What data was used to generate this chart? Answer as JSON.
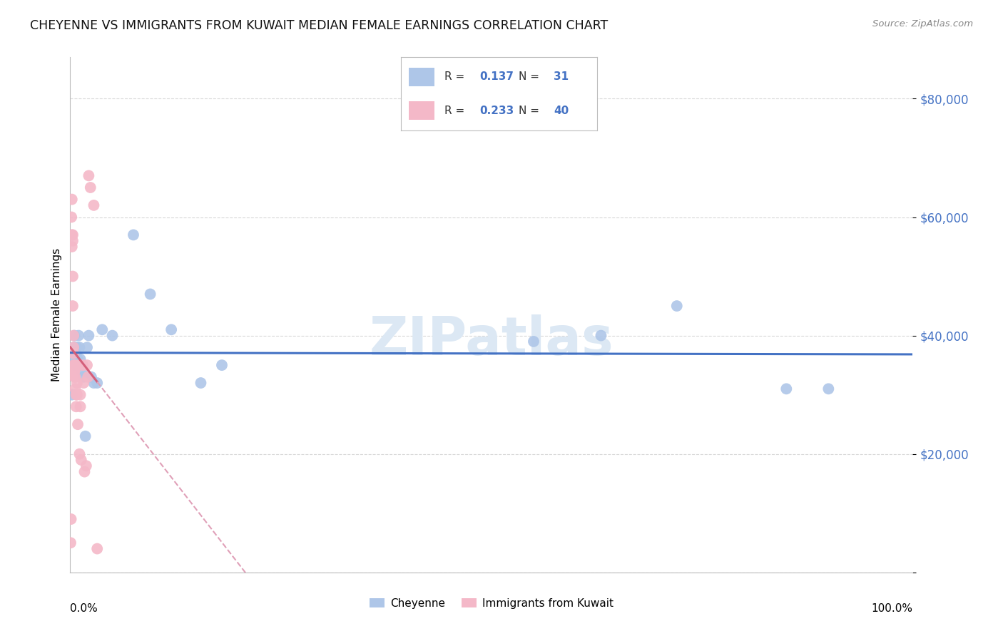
{
  "title": "CHEYENNE VS IMMIGRANTS FROM KUWAIT MEDIAN FEMALE EARNINGS CORRELATION CHART",
  "source": "Source: ZipAtlas.com",
  "ylabel": "Median Female Earnings",
  "legend_label_cheyenne": "Cheyenne",
  "legend_label_kuwait": "Immigrants from Kuwait",
  "cheyenne_R": "0.137",
  "cheyenne_N": "31",
  "kuwait_R": "0.233",
  "kuwait_N": "40",
  "yticks": [
    0,
    20000,
    40000,
    60000,
    80000
  ],
  "ytick_labels": [
    "",
    "$20,000",
    "$40,000",
    "$60,000",
    "$80,000"
  ],
  "cheyenne_color": "#aec6e8",
  "cheyenne_line_color": "#4472c4",
  "kuwait_color": "#f4b8c8",
  "kuwait_line_color": "#d45f7a",
  "kuwait_dash_color": "#e0a0b8",
  "label_color": "#4472c4",
  "background_color": "#ffffff",
  "grid_color": "#d8d8d8",
  "watermark_color": "#dce8f4",
  "cheyenne_x": [
    0.002,
    0.003,
    0.004,
    0.005,
    0.006,
    0.007,
    0.008,
    0.009,
    0.01,
    0.011,
    0.012,
    0.014,
    0.016,
    0.018,
    0.02,
    0.022,
    0.025,
    0.028,
    0.032,
    0.038,
    0.05,
    0.075,
    0.095,
    0.12,
    0.155,
    0.18,
    0.55,
    0.63,
    0.72,
    0.85,
    0.9
  ],
  "cheyenne_y": [
    30000,
    36000,
    38000,
    40000,
    38000,
    35000,
    38000,
    36000,
    40000,
    38000,
    36000,
    34000,
    33000,
    23000,
    38000,
    40000,
    33000,
    32000,
    32000,
    41000,
    40000,
    57000,
    47000,
    41000,
    32000,
    35000,
    39000,
    40000,
    45000,
    31000,
    31000
  ],
  "kuwait_x": [
    0.0005,
    0.001,
    0.0015,
    0.002,
    0.002,
    0.002,
    0.003,
    0.003,
    0.003,
    0.003,
    0.004,
    0.004,
    0.004,
    0.004,
    0.005,
    0.005,
    0.005,
    0.006,
    0.006,
    0.006,
    0.007,
    0.007,
    0.008,
    0.008,
    0.009,
    0.01,
    0.011,
    0.012,
    0.012,
    0.013,
    0.015,
    0.016,
    0.017,
    0.019,
    0.02,
    0.021,
    0.022,
    0.024,
    0.028,
    0.032
  ],
  "kuwait_y": [
    5000,
    9000,
    60000,
    57000,
    55000,
    63000,
    57000,
    56000,
    50000,
    45000,
    40000,
    38000,
    37000,
    35000,
    34000,
    34000,
    33000,
    35000,
    33000,
    31000,
    30000,
    28000,
    32000,
    30000,
    25000,
    35000,
    20000,
    30000,
    28000,
    19000,
    35000,
    32000,
    17000,
    18000,
    35000,
    33000,
    67000,
    65000,
    62000,
    4000
  ]
}
